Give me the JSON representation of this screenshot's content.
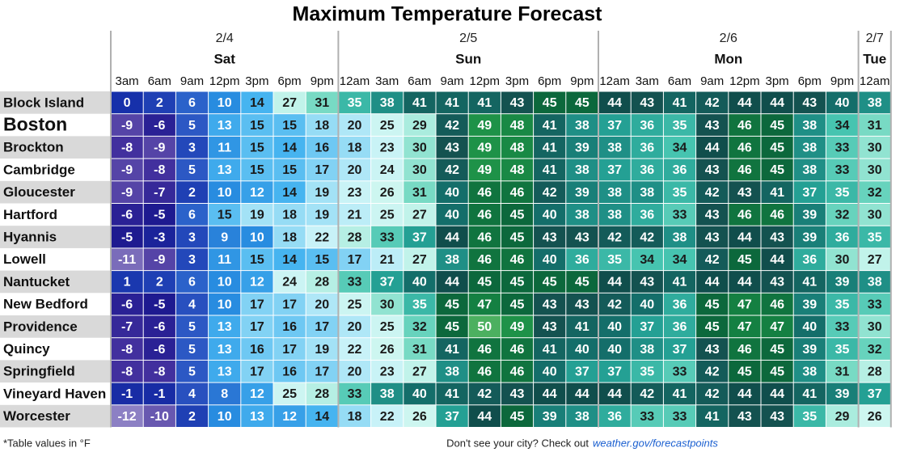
{
  "title": "Maximum Temperature Forecast",
  "days": [
    {
      "date": "2/4",
      "name": "Sat",
      "times": [
        "3am",
        "6am",
        "9am",
        "12pm",
        "3pm",
        "6pm",
        "9pm"
      ]
    },
    {
      "date": "2/5",
      "name": "Sun",
      "times": [
        "12am",
        "3am",
        "6am",
        "9am",
        "12pm",
        "3pm",
        "6pm",
        "9pm"
      ]
    },
    {
      "date": "2/6",
      "name": "Mon",
      "times": [
        "12am",
        "3am",
        "6am",
        "9am",
        "12pm",
        "3pm",
        "6pm",
        "9pm"
      ]
    },
    {
      "date": "2/7",
      "name": "Tue",
      "times": [
        "12am"
      ]
    }
  ],
  "rows": [
    {
      "city": "Block Island",
      "values": [
        0,
        2,
        6,
        10,
        14,
        27,
        31,
        35,
        38,
        41,
        41,
        41,
        43,
        45,
        45,
        44,
        43,
        41,
        42,
        44,
        44,
        43,
        40,
        38
      ]
    },
    {
      "city": "Boston",
      "values": [
        -9,
        -6,
        5,
        13,
        15,
        15,
        18,
        20,
        25,
        29,
        42,
        49,
        48,
        41,
        38,
        37,
        36,
        35,
        43,
        46,
        45,
        38,
        34,
        31
      ]
    },
    {
      "city": "Brockton",
      "values": [
        -8,
        -9,
        3,
        11,
        15,
        14,
        16,
        18,
        23,
        30,
        43,
        49,
        48,
        41,
        39,
        38,
        36,
        34,
        44,
        46,
        45,
        38,
        33,
        30
      ]
    },
    {
      "city": "Cambridge",
      "values": [
        -9,
        -8,
        5,
        13,
        15,
        15,
        17,
        20,
        24,
        30,
        42,
        49,
        48,
        41,
        38,
        37,
        36,
        36,
        43,
        46,
        45,
        38,
        33,
        30
      ]
    },
    {
      "city": "Gloucester",
      "values": [
        -9,
        -7,
        2,
        10,
        12,
        14,
        19,
        23,
        26,
        31,
        40,
        46,
        46,
        42,
        39,
        38,
        38,
        35,
        42,
        43,
        41,
        37,
        35,
        32
      ]
    },
    {
      "city": "Hartford",
      "values": [
        -6,
        -5,
        6,
        15,
        19,
        18,
        19,
        21,
        25,
        27,
        40,
        46,
        45,
        40,
        38,
        38,
        36,
        33,
        43,
        46,
        46,
        39,
        32,
        30
      ]
    },
    {
      "city": "Hyannis",
      "values": [
        -5,
        -3,
        3,
        9,
        10,
        18,
        22,
        28,
        33,
        37,
        44,
        46,
        45,
        43,
        43,
        42,
        42,
        38,
        43,
        44,
        43,
        39,
        36,
        35
      ]
    },
    {
      "city": "Lowell",
      "values": [
        -11,
        -9,
        3,
        11,
        15,
        14,
        15,
        17,
        21,
        27,
        38,
        46,
        46,
        40,
        36,
        35,
        34,
        34,
        42,
        45,
        44,
        36,
        30,
        27
      ]
    },
    {
      "city": "Nantucket",
      "values": [
        1,
        2,
        6,
        10,
        12,
        24,
        28,
        33,
        37,
        40,
        44,
        45,
        45,
        45,
        45,
        44,
        43,
        41,
        44,
        44,
        43,
        41,
        39,
        38
      ]
    },
    {
      "city": "New Bedford",
      "values": [
        -6,
        -5,
        4,
        10,
        17,
        17,
        20,
        25,
        30,
        35,
        45,
        47,
        45,
        43,
        43,
        42,
        40,
        36,
        45,
        47,
        46,
        39,
        35,
        33
      ]
    },
    {
      "city": "Providence",
      "values": [
        -7,
        -6,
        5,
        13,
        17,
        16,
        17,
        20,
        25,
        32,
        45,
        50,
        49,
        43,
        41,
        40,
        37,
        36,
        45,
        47,
        47,
        40,
        33,
        30
      ]
    },
    {
      "city": "Quincy",
      "values": [
        -8,
        -6,
        5,
        13,
        16,
        17,
        19,
        22,
        26,
        31,
        41,
        46,
        46,
        41,
        40,
        40,
        38,
        37,
        43,
        46,
        45,
        39,
        35,
        32
      ]
    },
    {
      "city": "Springfield",
      "values": [
        -8,
        -8,
        5,
        13,
        17,
        16,
        17,
        20,
        23,
        27,
        38,
        46,
        46,
        40,
        37,
        37,
        35,
        33,
        42,
        45,
        45,
        38,
        31,
        28
      ]
    },
    {
      "city": "Vineyard Haven",
      "values": [
        -1,
        -1,
        4,
        8,
        12,
        25,
        28,
        33,
        38,
        40,
        41,
        42,
        43,
        44,
        44,
        44,
        42,
        41,
        42,
        44,
        44,
        41,
        39,
        37
      ]
    },
    {
      "city": "Worcester",
      "values": [
        -12,
        -10,
        2,
        10,
        13,
        12,
        14,
        18,
        22,
        26,
        37,
        44,
        45,
        39,
        38,
        36,
        33,
        33,
        41,
        43,
        43,
        35,
        29,
        26
      ]
    }
  ],
  "footnote": "*Table values in °F",
  "credit": {
    "text": "Don't see your city? Check out",
    "link": "weather.gov/forecastpoints"
  }
}
